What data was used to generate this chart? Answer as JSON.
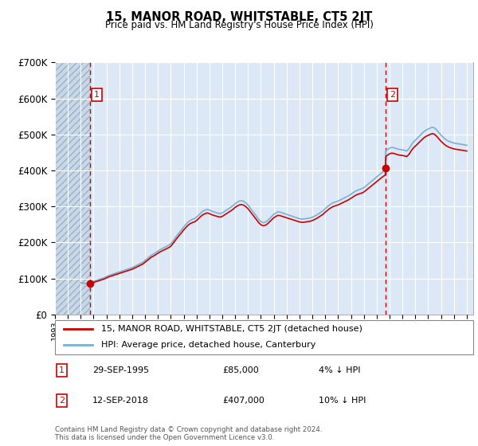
{
  "title": "15, MANOR ROAD, WHITSTABLE, CT5 2JT",
  "subtitle": "Price paid vs. HM Land Registry's House Price Index (HPI)",
  "legend_line1": "15, MANOR ROAD, WHITSTABLE, CT5 2JT (detached house)",
  "legend_line2": "HPI: Average price, detached house, Canterbury",
  "annotation1_date": "29-SEP-1995",
  "annotation1_price": "£85,000",
  "annotation1_hpi": "4% ↓ HPI",
  "annotation2_date": "12-SEP-2018",
  "annotation2_price": "£407,000",
  "annotation2_hpi": "10% ↓ HPI",
  "footer": "Contains HM Land Registry data © Crown copyright and database right 2024.\nThis data is licensed under the Open Government Licence v3.0.",
  "ylim": [
    0,
    700000
  ],
  "yticks": [
    0,
    100000,
    200000,
    300000,
    400000,
    500000,
    600000,
    700000
  ],
  "ytick_labels": [
    "£0",
    "£100K",
    "£200K",
    "£300K",
    "£400K",
    "£500K",
    "£600K",
    "£700K"
  ],
  "xlim_start": 1993.0,
  "xlim_end": 2025.5,
  "sale1_year": 1995.75,
  "sale1_value": 85000,
  "sale2_year": 2018.7,
  "sale2_value": 407000,
  "line_color_red": "#cc0000",
  "line_color_blue": "#7ab0d4",
  "bg_color": "#dce8f5",
  "grid_color": "#ffffff",
  "dashed_line_color": "#cc0000",
  "marker_box_color": "#cc0000",
  "hpi_data": [
    [
      1995.0,
      88000
    ],
    [
      1995.08,
      87500
    ],
    [
      1995.17,
      87000
    ],
    [
      1995.25,
      86500
    ],
    [
      1995.33,
      86000
    ],
    [
      1995.42,
      85500
    ],
    [
      1995.5,
      85200
    ],
    [
      1995.58,
      85000
    ],
    [
      1995.67,
      85200
    ],
    [
      1995.75,
      88000
    ],
    [
      1995.83,
      89000
    ],
    [
      1995.92,
      90000
    ],
    [
      1996.0,
      92000
    ],
    [
      1996.17,
      94000
    ],
    [
      1996.33,
      96000
    ],
    [
      1996.5,
      98000
    ],
    [
      1996.67,
      100000
    ],
    [
      1996.83,
      102000
    ],
    [
      1997.0,
      105000
    ],
    [
      1997.17,
      108000
    ],
    [
      1997.33,
      110000
    ],
    [
      1997.5,
      112000
    ],
    [
      1997.67,
      114000
    ],
    [
      1997.83,
      116000
    ],
    [
      1998.0,
      118000
    ],
    [
      1998.17,
      120000
    ],
    [
      1998.33,
      122000
    ],
    [
      1998.5,
      124000
    ],
    [
      1998.67,
      126000
    ],
    [
      1998.83,
      128000
    ],
    [
      1999.0,
      130000
    ],
    [
      1999.17,
      133000
    ],
    [
      1999.33,
      136000
    ],
    [
      1999.5,
      139000
    ],
    [
      1999.67,
      142000
    ],
    [
      1999.83,
      145000
    ],
    [
      2000.0,
      150000
    ],
    [
      2000.17,
      155000
    ],
    [
      2000.33,
      160000
    ],
    [
      2000.5,
      165000
    ],
    [
      2000.67,
      168000
    ],
    [
      2000.83,
      172000
    ],
    [
      2001.0,
      176000
    ],
    [
      2001.17,
      180000
    ],
    [
      2001.33,
      183000
    ],
    [
      2001.5,
      186000
    ],
    [
      2001.67,
      189000
    ],
    [
      2001.83,
      192000
    ],
    [
      2002.0,
      196000
    ],
    [
      2002.17,
      204000
    ],
    [
      2002.33,
      212000
    ],
    [
      2002.5,
      220000
    ],
    [
      2002.67,
      228000
    ],
    [
      2002.83,
      235000
    ],
    [
      2003.0,
      243000
    ],
    [
      2003.17,
      250000
    ],
    [
      2003.33,
      256000
    ],
    [
      2003.5,
      261000
    ],
    [
      2003.67,
      264000
    ],
    [
      2003.83,
      266000
    ],
    [
      2004.0,
      270000
    ],
    [
      2004.17,
      276000
    ],
    [
      2004.33,
      282000
    ],
    [
      2004.5,
      287000
    ],
    [
      2004.67,
      290000
    ],
    [
      2004.83,
      292000
    ],
    [
      2005.0,
      290000
    ],
    [
      2005.17,
      287000
    ],
    [
      2005.33,
      285000
    ],
    [
      2005.5,
      283000
    ],
    [
      2005.67,
      281000
    ],
    [
      2005.83,
      280000
    ],
    [
      2006.0,
      282000
    ],
    [
      2006.17,
      286000
    ],
    [
      2006.33,
      290000
    ],
    [
      2006.5,
      294000
    ],
    [
      2006.67,
      298000
    ],
    [
      2006.83,
      302000
    ],
    [
      2007.0,
      308000
    ],
    [
      2007.17,
      312000
    ],
    [
      2007.33,
      315000
    ],
    [
      2007.5,
      316000
    ],
    [
      2007.67,
      314000
    ],
    [
      2007.83,
      310000
    ],
    [
      2008.0,
      304000
    ],
    [
      2008.17,
      296000
    ],
    [
      2008.33,
      288000
    ],
    [
      2008.5,
      280000
    ],
    [
      2008.67,
      272000
    ],
    [
      2008.83,
      264000
    ],
    [
      2009.0,
      258000
    ],
    [
      2009.17,
      255000
    ],
    [
      2009.33,
      256000
    ],
    [
      2009.5,
      260000
    ],
    [
      2009.67,
      266000
    ],
    [
      2009.83,
      272000
    ],
    [
      2010.0,
      278000
    ],
    [
      2010.17,
      282000
    ],
    [
      2010.33,
      285000
    ],
    [
      2010.5,
      284000
    ],
    [
      2010.67,
      282000
    ],
    [
      2010.83,
      280000
    ],
    [
      2011.0,
      278000
    ],
    [
      2011.17,
      276000
    ],
    [
      2011.33,
      274000
    ],
    [
      2011.5,
      272000
    ],
    [
      2011.67,
      270000
    ],
    [
      2011.83,
      268000
    ],
    [
      2012.0,
      266000
    ],
    [
      2012.17,
      265000
    ],
    [
      2012.33,
      265000
    ],
    [
      2012.5,
      266000
    ],
    [
      2012.67,
      267000
    ],
    [
      2012.83,
      268000
    ],
    [
      2013.0,
      270000
    ],
    [
      2013.17,
      273000
    ],
    [
      2013.33,
      276000
    ],
    [
      2013.5,
      280000
    ],
    [
      2013.67,
      284000
    ],
    [
      2013.83,
      288000
    ],
    [
      2014.0,
      294000
    ],
    [
      2014.17,
      299000
    ],
    [
      2014.33,
      304000
    ],
    [
      2014.5,
      308000
    ],
    [
      2014.67,
      311000
    ],
    [
      2014.83,
      313000
    ],
    [
      2015.0,
      315000
    ],
    [
      2015.17,
      318000
    ],
    [
      2015.33,
      321000
    ],
    [
      2015.5,
      324000
    ],
    [
      2015.67,
      327000
    ],
    [
      2015.83,
      330000
    ],
    [
      2016.0,
      334000
    ],
    [
      2016.17,
      338000
    ],
    [
      2016.33,
      342000
    ],
    [
      2016.5,
      345000
    ],
    [
      2016.67,
      347000
    ],
    [
      2016.83,
      349000
    ],
    [
      2017.0,
      352000
    ],
    [
      2017.17,
      357000
    ],
    [
      2017.33,
      362000
    ],
    [
      2017.5,
      367000
    ],
    [
      2017.67,
      372000
    ],
    [
      2017.83,
      377000
    ],
    [
      2018.0,
      382000
    ],
    [
      2018.17,
      387000
    ],
    [
      2018.33,
      392000
    ],
    [
      2018.5,
      397000
    ],
    [
      2018.67,
      401000
    ],
    [
      2018.7,
      452000
    ],
    [
      2018.75,
      456000
    ],
    [
      2018.83,
      458000
    ],
    [
      2018.92,
      460000
    ],
    [
      2019.0,
      462000
    ],
    [
      2019.17,
      464000
    ],
    [
      2019.33,
      463000
    ],
    [
      2019.5,
      461000
    ],
    [
      2019.67,
      459000
    ],
    [
      2019.83,
      458000
    ],
    [
      2020.0,
      457000
    ],
    [
      2020.17,
      456000
    ],
    [
      2020.33,
      454000
    ],
    [
      2020.5,
      460000
    ],
    [
      2020.67,
      470000
    ],
    [
      2020.83,
      478000
    ],
    [
      2021.0,
      484000
    ],
    [
      2021.17,
      490000
    ],
    [
      2021.33,
      496000
    ],
    [
      2021.5,
      502000
    ],
    [
      2021.67,
      508000
    ],
    [
      2021.83,
      512000
    ],
    [
      2022.0,
      515000
    ],
    [
      2022.17,
      518000
    ],
    [
      2022.33,
      520000
    ],
    [
      2022.5,
      518000
    ],
    [
      2022.67,
      512000
    ],
    [
      2022.83,
      505000
    ],
    [
      2023.0,
      498000
    ],
    [
      2023.17,
      492000
    ],
    [
      2023.33,
      487000
    ],
    [
      2023.5,
      483000
    ],
    [
      2023.67,
      480000
    ],
    [
      2023.83,
      478000
    ],
    [
      2024.0,
      476000
    ],
    [
      2024.17,
      475000
    ],
    [
      2024.33,
      474000
    ],
    [
      2024.5,
      473000
    ],
    [
      2024.67,
      472000
    ],
    [
      2024.83,
      471000
    ],
    [
      2025.0,
      470000
    ]
  ]
}
